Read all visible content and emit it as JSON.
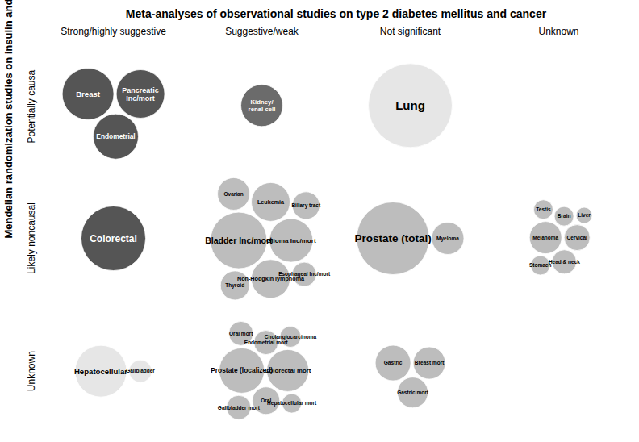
{
  "chart_data": {
    "type": "bubble",
    "title": "Meta-analyses of observational studies on type 2 diabetes mellitus and cancer",
    "ylabel": "Mendelian randomization studies on insulin and cancer",
    "x_categories": [
      "Strong/highly suggestive",
      "Suggestive/weak",
      "Not significant",
      "Unknown"
    ],
    "y_categories": [
      "Potentially causal",
      "Likely noncausal",
      "Unknown"
    ],
    "labels": [
      "Breast",
      "Endometrial",
      "Pancreatic\nInc/mort",
      "Kidney/\nrenal cell",
      "Lung",
      "Colorectal",
      "Ovarian",
      "Non-Hodgkin lymphoma",
      "Leukemia",
      "Biliary tract",
      "Bladder Inc/mort",
      "Glioma Inc/mort",
      "Esophageal Inc/mort",
      "Thyroid",
      "Myeloma",
      "Prostate (total)",
      "Melanoma",
      "Brain",
      "Testis",
      "Stomach",
      "Cervical",
      "Liver",
      "Head & neck",
      "Hepatocellular",
      "Gallbladder",
      "Endometrial mort",
      "Oral mort",
      "Colorectal mort",
      "Hepatocellular mort",
      "Cholangiocarcinoma",
      "Prostate (localized)",
      "Gallbladder mort",
      "Oral",
      "Gastric",
      "Gastric mort",
      "Breast mort"
    ],
    "x": [
      "Strong/highly suggestive",
      "Strong/highly suggestive",
      "Strong/highly suggestive",
      "Suggestive/weak",
      "Not significant",
      "Strong/highly suggestive",
      "Suggestive/weak",
      "Suggestive/weak",
      "Suggestive/weak",
      "Suggestive/weak",
      "Suggestive/weak",
      "Suggestive/weak",
      "Suggestive/weak",
      "Suggestive/weak",
      "Not significant",
      "Not significant",
      "Unknown",
      "Unknown",
      "Unknown",
      "Unknown",
      "Unknown",
      "Unknown",
      "Unknown",
      "Strong/highly suggestive",
      "Strong/highly suggestive",
      "Suggestive/weak",
      "Suggestive/weak",
      "Suggestive/weak",
      "Suggestive/weak",
      "Suggestive/weak",
      "Suggestive/weak",
      "Suggestive/weak",
      "Suggestive/weak",
      "Not significant",
      "Not significant",
      "Not significant"
    ],
    "y": [
      "Potentially causal",
      "Potentially causal",
      "Potentially causal",
      "Potentially causal",
      "Potentially causal",
      "Likely noncausal",
      "Likely noncausal",
      "Likely noncausal",
      "Likely noncausal",
      "Likely noncausal",
      "Likely noncausal",
      "Likely noncausal",
      "Likely noncausal",
      "Likely noncausal",
      "Likely noncausal",
      "Likely noncausal",
      "Likely noncausal",
      "Likely noncausal",
      "Likely noncausal",
      "Likely noncausal",
      "Likely noncausal",
      "Likely noncausal",
      "Likely noncausal",
      "Unknown",
      "Unknown",
      "Unknown",
      "Unknown",
      "Unknown",
      "Unknown",
      "Unknown",
      "Unknown",
      "Unknown",
      "Unknown",
      "Unknown",
      "Unknown",
      "Unknown"
    ],
    "sizes": [
      32,
      28,
      30,
      26,
      52,
      40,
      20,
      24,
      24,
      17,
      35,
      27,
      15,
      18,
      20,
      45,
      20,
      12,
      12,
      12,
      16,
      10,
      15,
      32,
      14,
      15,
      15,
      26,
      12,
      13,
      28,
      15,
      17,
      22,
      19,
      20
    ],
    "colors": [
      "#555555",
      "#555555",
      "#555555",
      "#6b6b6b",
      "#e6e6e6",
      "#555555",
      "#bdbdbd",
      "#bdbdbd",
      "#bdbdbd",
      "#bdbdbd",
      "#bdbdbd",
      "#bdbdbd",
      "#bdbdbd",
      "#bdbdbd",
      "#bdbdbd",
      "#bdbdbd",
      "#bdbdbd",
      "#bdbdbd",
      "#bdbdbd",
      "#bdbdbd",
      "#bdbdbd",
      "#bdbdbd",
      "#bdbdbd",
      "#e6e6e6",
      "#e6e6e6",
      "#bdbdbd",
      "#bdbdbd",
      "#bdbdbd",
      "#bdbdbd",
      "#bdbdbd",
      "#bdbdbd",
      "#bdbdbd",
      "#bdbdbd",
      "#bdbdbd",
      "#bdbdbd",
      "#bdbdbd"
    ]
  }
}
